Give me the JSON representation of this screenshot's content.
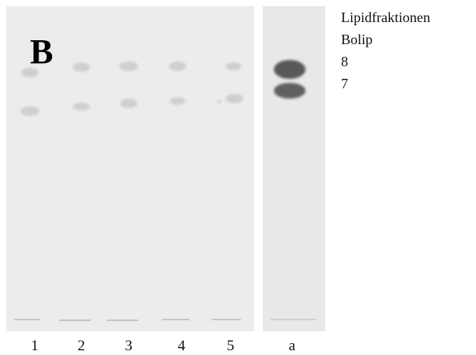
{
  "panel_label": "B",
  "lanes": [
    "1",
    "2",
    "3",
    "4",
    "5",
    "a"
  ],
  "legend": [
    "Lipidfraktionen",
    "Bolip",
    "8",
    "7"
  ]
}
